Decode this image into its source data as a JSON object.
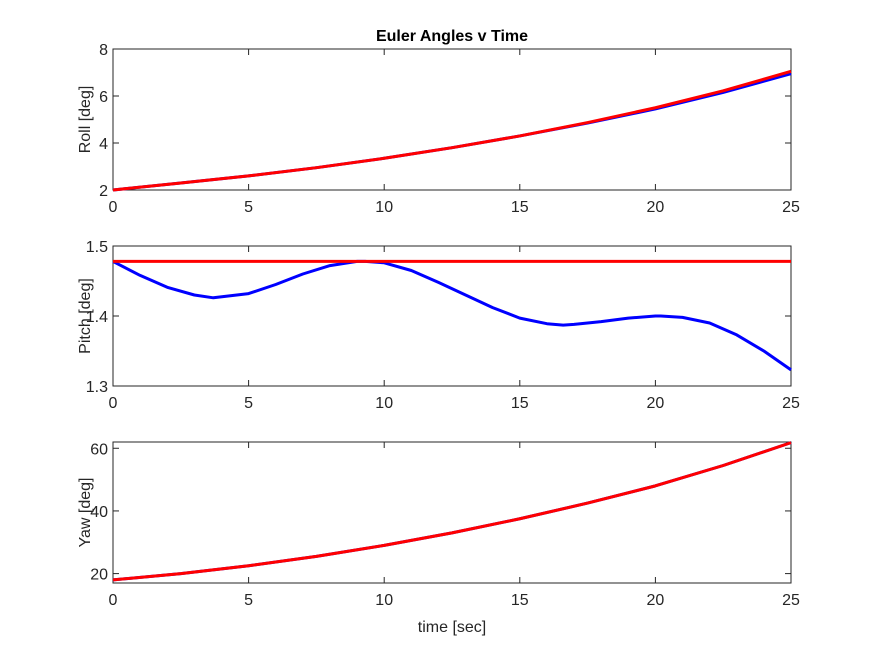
{
  "figure": {
    "title": "Euler Angles v Time"
  },
  "chart_data": [
    {
      "type": "line",
      "title": "Euler Angles v Time",
      "xlabel": "",
      "ylabel": "Roll [deg]",
      "xlim": [
        0,
        25
      ],
      "ylim": [
        2,
        8
      ],
      "xticks": [
        0,
        5,
        10,
        15,
        20,
        25
      ],
      "yticks": [
        2,
        4,
        6,
        8
      ],
      "grid": false,
      "x": [
        0,
        2.5,
        5,
        7.5,
        10,
        12.5,
        15,
        17.5,
        20,
        22.5,
        25
      ],
      "series": [
        {
          "color": "#0000ff",
          "values": [
            2.0,
            2.3,
            2.6,
            2.95,
            3.35,
            3.8,
            4.3,
            4.85,
            5.45,
            6.15,
            6.95
          ]
        },
        {
          "color": "#ff0000",
          "values": [
            2.0,
            2.3,
            2.6,
            2.95,
            3.35,
            3.8,
            4.3,
            4.87,
            5.5,
            6.22,
            7.05
          ]
        }
      ]
    },
    {
      "type": "line",
      "title": "",
      "xlabel": "",
      "ylabel": "Pitch [deg]",
      "xlim": [
        0,
        25
      ],
      "ylim": [
        1.3,
        1.5
      ],
      "xticks": [
        0,
        5,
        10,
        15,
        20,
        25
      ],
      "yticks": [
        1.3,
        1.4,
        1.5
      ],
      "grid": false,
      "x": [
        0,
        1,
        2,
        3,
        3.7,
        5,
        6,
        7,
        8,
        9,
        9.3,
        10,
        11,
        12,
        13,
        14,
        15,
        16,
        16.6,
        17,
        18,
        19,
        20,
        20.2,
        21,
        22,
        23,
        24,
        25
      ],
      "series": [
        {
          "color": "#0000ff",
          "values": [
            1.478,
            1.458,
            1.441,
            1.43,
            1.426,
            1.432,
            1.445,
            1.46,
            1.472,
            1.478,
            1.478,
            1.476,
            1.465,
            1.448,
            1.43,
            1.412,
            1.397,
            1.389,
            1.387,
            1.388,
            1.392,
            1.397,
            1.4,
            1.4,
            1.398,
            1.39,
            1.373,
            1.35,
            1.323
          ]
        },
        {
          "color": "#ff0000",
          "values": [
            1.478,
            1.478,
            1.478,
            1.478,
            1.478,
            1.478,
            1.478,
            1.478,
            1.478,
            1.478,
            1.478,
            1.478,
            1.478,
            1.478,
            1.478,
            1.478,
            1.478,
            1.478,
            1.478,
            1.478,
            1.478,
            1.478,
            1.478,
            1.478,
            1.478,
            1.478,
            1.478,
            1.478,
            1.478
          ]
        }
      ]
    },
    {
      "type": "line",
      "title": "",
      "xlabel": "time [sec]",
      "ylabel": "Yaw [deg]",
      "xlim": [
        0,
        25
      ],
      "ylim": [
        17,
        62
      ],
      "xticks": [
        0,
        5,
        10,
        15,
        20,
        25
      ],
      "yticks": [
        20,
        40,
        60
      ],
      "grid": false,
      "x": [
        0,
        2.5,
        5,
        7.5,
        10,
        12.5,
        15,
        17.5,
        20,
        22.5,
        25
      ],
      "series": [
        {
          "color": "#0000ff",
          "values": [
            18.0,
            20.0,
            22.5,
            25.5,
            29.0,
            33.0,
            37.5,
            42.5,
            48.0,
            54.5,
            61.8
          ]
        },
        {
          "color": "#ff0000",
          "values": [
            18.0,
            20.0,
            22.5,
            25.5,
            29.0,
            33.0,
            37.5,
            42.5,
            48.0,
            54.5,
            61.8
          ]
        }
      ]
    }
  ]
}
